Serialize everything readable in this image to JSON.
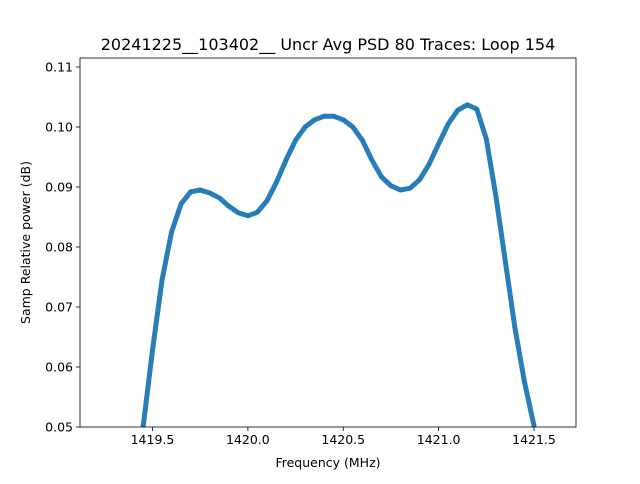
{
  "chart_data": {
    "type": "line",
    "title": "20241225__103402__  Uncr Avg PSD 80 Traces: Loop 154",
    "xlabel": "Frequency (MHz)",
    "ylabel": "Samp Relative power (dB)",
    "xlim": [
      1419.12,
      1421.72
    ],
    "ylim": [
      0.05,
      0.1115
    ],
    "xticks": [
      1419.5,
      1420.0,
      1420.5,
      1421.0,
      1421.5
    ],
    "xtick_labels": [
      "1419.5",
      "1420.0",
      "1420.5",
      "1421.0",
      "1421.5"
    ],
    "yticks": [
      0.05,
      0.06,
      0.07,
      0.08,
      0.09,
      0.1,
      0.11
    ],
    "ytick_labels": [
      "0.05",
      "0.06",
      "0.07",
      "0.08",
      "0.09",
      "0.10",
      "0.11"
    ],
    "grid": false,
    "legend": null,
    "series": [
      {
        "color": "#1f77b4",
        "x": [
          1419.45,
          1419.5,
          1419.55,
          1419.6,
          1419.65,
          1419.7,
          1419.75,
          1419.8,
          1419.85,
          1419.9,
          1419.95,
          1420.0,
          1420.05,
          1420.1,
          1420.15,
          1420.2,
          1420.25,
          1420.3,
          1420.35,
          1420.4,
          1420.45,
          1420.5,
          1420.55,
          1420.6,
          1420.65,
          1420.7,
          1420.75,
          1420.8,
          1420.85,
          1420.9,
          1420.95,
          1421.0,
          1421.05,
          1421.1,
          1421.15,
          1421.2,
          1421.25,
          1421.3,
          1421.35,
          1421.4,
          1421.45,
          1421.5
        ],
        "y": [
          0.0498,
          0.0628,
          0.0745,
          0.0825,
          0.0872,
          0.0892,
          0.0895,
          0.089,
          0.0882,
          0.0868,
          0.0857,
          0.0852,
          0.0858,
          0.0877,
          0.0908,
          0.0945,
          0.0978,
          0.1,
          0.1012,
          0.1018,
          0.1018,
          0.1012,
          0.1,
          0.0978,
          0.0945,
          0.0917,
          0.0902,
          0.0895,
          0.0898,
          0.0912,
          0.0938,
          0.0972,
          0.1005,
          0.1028,
          0.1037,
          0.103,
          0.098,
          0.0885,
          0.0775,
          0.0665,
          0.0575,
          0.0502
        ]
      }
    ]
  }
}
